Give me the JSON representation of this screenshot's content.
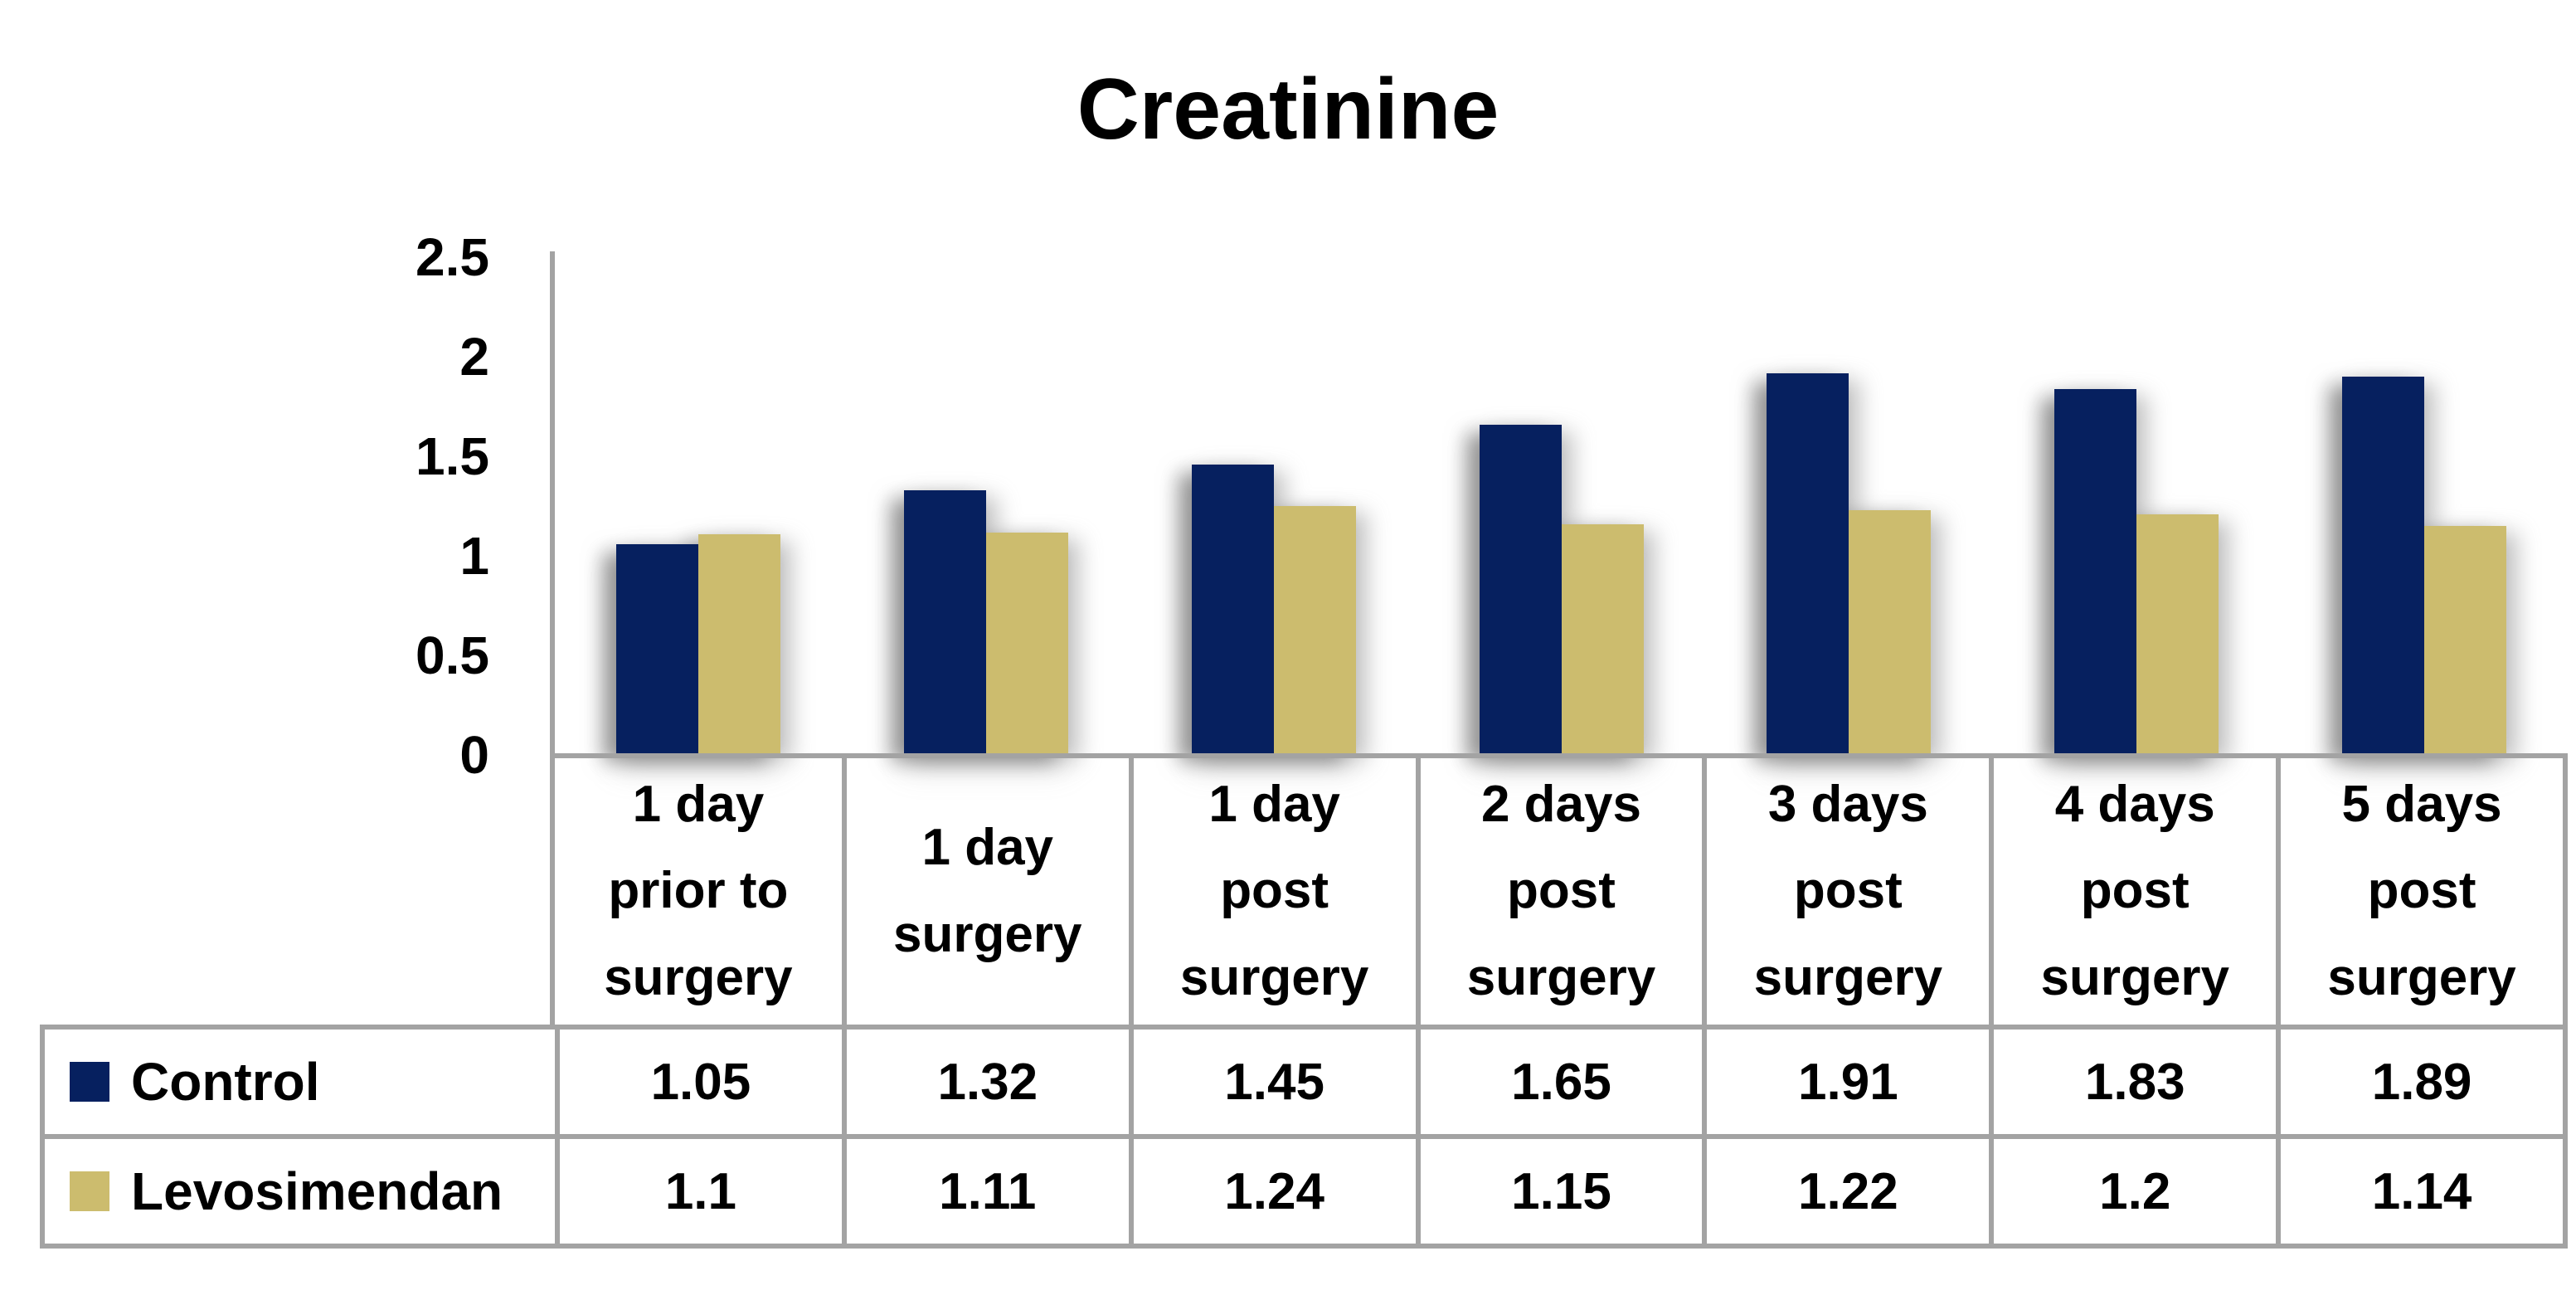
{
  "title": "Creatinine",
  "colors": {
    "control_series": "#06205f",
    "levosimendan_series": "#ccbc6e",
    "grid_line": "#a3a3a3",
    "text": "#000000",
    "background": "#ffffff"
  },
  "chart_data": {
    "type": "bar",
    "title": "Creatinine",
    "categories": [
      "1 day prior to surgery",
      "1 day surgery",
      "1 day post surgery",
      "2 days post surgery",
      "3 days post surgery",
      "4 days post surgery",
      "5 days post surgery"
    ],
    "categories_display": [
      "1 day\nprior to\nsurgery",
      "1 day\nsurgery",
      "1 day\npost\nsurgery",
      "2 days\npost\nsurgery",
      "3 days\npost\nsurgery",
      "4 days\npost\nsurgery",
      "5 days\npost\nsurgery"
    ],
    "series": [
      {
        "name": "Control",
        "color": "#06205f",
        "values": [
          1.05,
          1.32,
          1.45,
          1.65,
          1.91,
          1.83,
          1.89
        ],
        "value_labels": [
          "1.05",
          "1.32",
          "1.45",
          "1.65",
          "1.91",
          "1.83",
          "1.89"
        ]
      },
      {
        "name": "Levosimendan",
        "color": "#ccbc6e",
        "values": [
          1.1,
          1.11,
          1.24,
          1.15,
          1.22,
          1.2,
          1.14
        ],
        "value_labels": [
          "1.1",
          "1.11",
          "1.24",
          "1.15",
          "1.22",
          "1.2",
          "1.14"
        ]
      }
    ],
    "ylim": [
      0,
      2.5
    ],
    "yticks": [
      0,
      0.5,
      1,
      1.5,
      2,
      2.5
    ],
    "ytick_labels": [
      "0",
      "0.5",
      "1",
      "1.5",
      "2",
      "2.5"
    ],
    "xlabel": "",
    "ylabel": "",
    "grid": false,
    "legend_position": "table-left"
  }
}
